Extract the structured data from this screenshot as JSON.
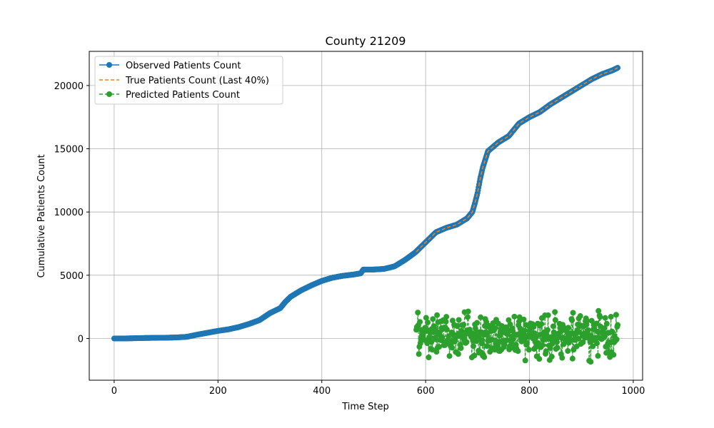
{
  "chart_data": {
    "type": "line",
    "title": "County 21209",
    "xlabel": "Time Step",
    "ylabel": "Cumulative Patients Count",
    "xlim": [
      -48,
      1018
    ],
    "ylim": [
      -3300,
      22700
    ],
    "xticks": [
      0,
      200,
      400,
      600,
      800,
      1000
    ],
    "yticks": [
      0,
      5000,
      10000,
      15000,
      20000
    ],
    "grid": true,
    "legend_position": "top-left",
    "series": [
      {
        "name": "Observed Patients Count",
        "color": "#1f77b4",
        "style": "solid-with-circle-markers",
        "x": [
          0,
          20,
          40,
          60,
          80,
          100,
          120,
          140,
          160,
          180,
          200,
          220,
          240,
          260,
          280,
          300,
          320,
          330,
          340,
          360,
          380,
          400,
          420,
          440,
          460,
          475,
          480,
          500,
          520,
          540,
          560,
          580,
          600,
          620,
          640,
          660,
          680,
          690,
          695,
          700,
          705,
          710,
          720,
          740,
          760,
          780,
          800,
          820,
          840,
          860,
          880,
          900,
          920,
          940,
          960,
          970
        ],
        "y": [
          0,
          0,
          20,
          40,
          50,
          60,
          80,
          130,
          300,
          450,
          600,
          720,
          900,
          1150,
          1450,
          2000,
          2400,
          2900,
          3300,
          3800,
          4200,
          4550,
          4800,
          4950,
          5050,
          5150,
          5450,
          5450,
          5500,
          5700,
          6200,
          6800,
          7600,
          8400,
          8750,
          9000,
          9500,
          10000,
          10700,
          11500,
          12600,
          13500,
          14800,
          15500,
          16000,
          17000,
          17500,
          17900,
          18500,
          19000,
          19500,
          20000,
          20500,
          20900,
          21200,
          21400
        ]
      },
      {
        "name": "True Patients Count (Last 40%)",
        "color": "#ff7f0e",
        "style": "dashed",
        "x": [
          582,
          600,
          620,
          640,
          660,
          680,
          690,
          695,
          700,
          705,
          710,
          720,
          740,
          760,
          780,
          800,
          820,
          840,
          860,
          880,
          900,
          920,
          940,
          960,
          970
        ],
        "y": [
          6850,
          7600,
          8400,
          8750,
          9000,
          9500,
          10000,
          10700,
          11500,
          12600,
          13500,
          14800,
          15500,
          16000,
          17000,
          17500,
          17900,
          18500,
          19000,
          19500,
          20000,
          20500,
          20900,
          21200,
          21400
        ]
      },
      {
        "name": "Predicted Patients Count",
        "color": "#2ca02c",
        "style": "dashed-with-circle-markers",
        "x_range": [
          582,
          970
        ],
        "y_range": [
          -2200,
          2700
        ]
      }
    ]
  }
}
